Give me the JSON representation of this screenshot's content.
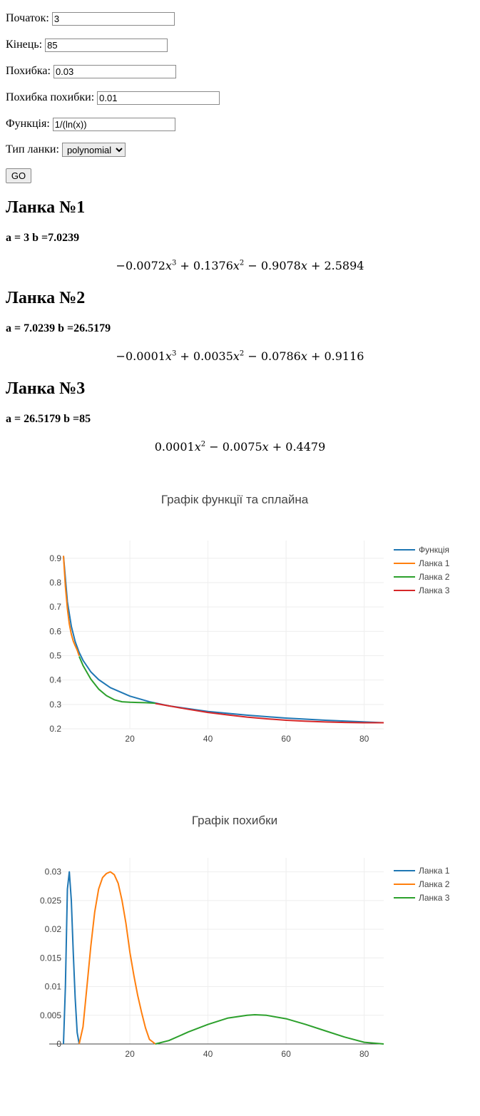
{
  "form": {
    "start_label": "Початок:",
    "start_value": "3",
    "end_label": "Кінець:",
    "end_value": "85",
    "error_label": "Похибка:",
    "error_value": "0.03",
    "error_error_label": "Похибка похибки:",
    "error_error_value": "0.01",
    "function_label": "Функція:",
    "function_value": "1/(ln(x))",
    "link_type_label": "Тип ланки:",
    "link_type_value": "polynomial",
    "go_label": "GO"
  },
  "links": [
    {
      "title": "Ланка №1",
      "range": "a = 3 b =7.0239"
    },
    {
      "title": "Ланка №2",
      "range": "a = 7.0239 b =26.5179"
    },
    {
      "title": "Ланка №3",
      "range": "a = 26.5179 b =85"
    }
  ],
  "chart_data": [
    {
      "type": "line",
      "title": "Графік функції та сплайна",
      "xlim": [
        3,
        85
      ],
      "ylim": [
        0.2,
        0.92
      ],
      "xticks": [
        20,
        40,
        60,
        80
      ],
      "yticks": [
        0.2,
        0.3,
        0.4,
        0.5,
        0.6,
        0.7,
        0.8,
        0.9
      ],
      "legend_position": "top-right",
      "series": [
        {
          "name": "Функція",
          "color": "#1f77b4",
          "x": [
            3,
            4,
            5,
            6,
            7,
            8,
            10,
            12,
            15,
            20,
            25,
            30,
            40,
            50,
            60,
            70,
            85
          ],
          "y": [
            0.91,
            0.721,
            0.621,
            0.558,
            0.514,
            0.481,
            0.434,
            0.402,
            0.369,
            0.334,
            0.311,
            0.294,
            0.271,
            0.256,
            0.244,
            0.235,
            0.225
          ]
        },
        {
          "name": "Ланка 1",
          "color": "#ff7f0e",
          "x": [
            3,
            3.5,
            4,
            4.5,
            5,
            5.5,
            6,
            6.5,
            7.0239
          ],
          "y": [
            0.91,
            0.784,
            0.693,
            0.63,
            0.588,
            0.56,
            0.541,
            0.523,
            0.499
          ]
        },
        {
          "name": "Ланка 2",
          "color": "#2ca02c",
          "x": [
            7.0239,
            8,
            10,
            12,
            14,
            16,
            18,
            20,
            22,
            24,
            26.5179
          ],
          "y": [
            0.497,
            0.46,
            0.404,
            0.363,
            0.336,
            0.319,
            0.311,
            0.309,
            0.308,
            0.307,
            0.305
          ]
        },
        {
          "name": "Ланка 3",
          "color": "#d62728",
          "x": [
            26.5179,
            30,
            35,
            40,
            45,
            50,
            55,
            60,
            65,
            70,
            75,
            80,
            85
          ],
          "y": [
            0.304,
            0.294,
            0.28,
            0.267,
            0.257,
            0.248,
            0.241,
            0.235,
            0.231,
            0.228,
            0.226,
            0.225,
            0.225
          ]
        }
      ]
    },
    {
      "type": "line",
      "title": "Графік похибки",
      "xlim": [
        3,
        85
      ],
      "ylim": [
        0,
        0.0302
      ],
      "xticks": [
        20,
        40,
        60,
        80
      ],
      "yticks": [
        0,
        0.005,
        0.01,
        0.015,
        0.02,
        0.025,
        0.03
      ],
      "legend_position": "top-right",
      "series": [
        {
          "name": "Ланка 1",
          "color": "#1f77b4",
          "x": [
            3,
            3.5,
            4,
            4.5,
            5,
            5.5,
            6,
            6.5,
            7.0239
          ],
          "y": [
            0,
            0.01,
            0.027,
            0.03,
            0.025,
            0.016,
            0.008,
            0.002,
            0
          ]
        },
        {
          "name": "Ланка 2",
          "color": "#ff7f0e",
          "x": [
            7.0239,
            8,
            9,
            10,
            11,
            12,
            13,
            14,
            15,
            16,
            17,
            18,
            19,
            20,
            21,
            22,
            23,
            24,
            25,
            26.5179
          ],
          "y": [
            0,
            0.003,
            0.01,
            0.017,
            0.023,
            0.027,
            0.029,
            0.0297,
            0.03,
            0.0295,
            0.028,
            0.025,
            0.021,
            0.016,
            0.012,
            0.0085,
            0.0055,
            0.0028,
            0.0008,
            0
          ]
        },
        {
          "name": "Ланка 3",
          "color": "#2ca02c",
          "x": [
            26.5179,
            30,
            35,
            40,
            45,
            50,
            52,
            55,
            60,
            65,
            70,
            75,
            80,
            85
          ],
          "y": [
            0,
            0.0006,
            0.0021,
            0.0034,
            0.0045,
            0.005,
            0.0051,
            0.005,
            0.0044,
            0.0034,
            0.0023,
            0.0012,
            0.0003,
            0
          ]
        }
      ]
    }
  ]
}
